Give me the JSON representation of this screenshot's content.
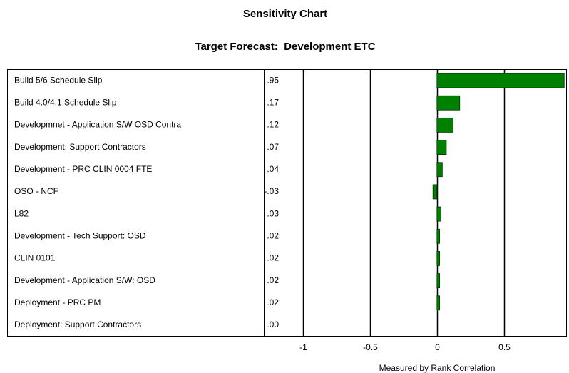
{
  "chart_data": {
    "type": "bar",
    "orientation": "horizontal",
    "title": "Sensitivity Chart",
    "subtitle": "Target Forecast:  Development ETC",
    "xlabel": "Measured by Rank Correlation",
    "categories": [
      "Build 5/6 Schedule Slip",
      "Build 4.0/4.1 Schedule Slip",
      "Developmnet - Application S/W OSD Contra",
      "Development: Support Contractors",
      "Development - PRC CLIN 0004 FTE",
      "OSO - NCF",
      "L82",
      "Development - Tech Support: OSD",
      "CLIN 0101",
      "Development - Application S/W: OSD",
      "Deployment - PRC PM",
      "Deployment: Support Contractors"
    ],
    "values": [
      0.95,
      0.17,
      0.12,
      0.07,
      0.04,
      -0.03,
      0.03,
      0.02,
      0.02,
      0.02,
      0.02,
      0.0
    ],
    "value_labels": [
      ".95",
      ".17",
      ".12",
      ".07",
      ".04",
      "-.03",
      ".03",
      ".02",
      ".02",
      ".02",
      ".02",
      ".00"
    ],
    "color": "#008000",
    "xlim": [
      -1,
      0.97
    ],
    "xticks": [
      -1,
      -0.5,
      0,
      0.5
    ],
    "grid": true
  }
}
